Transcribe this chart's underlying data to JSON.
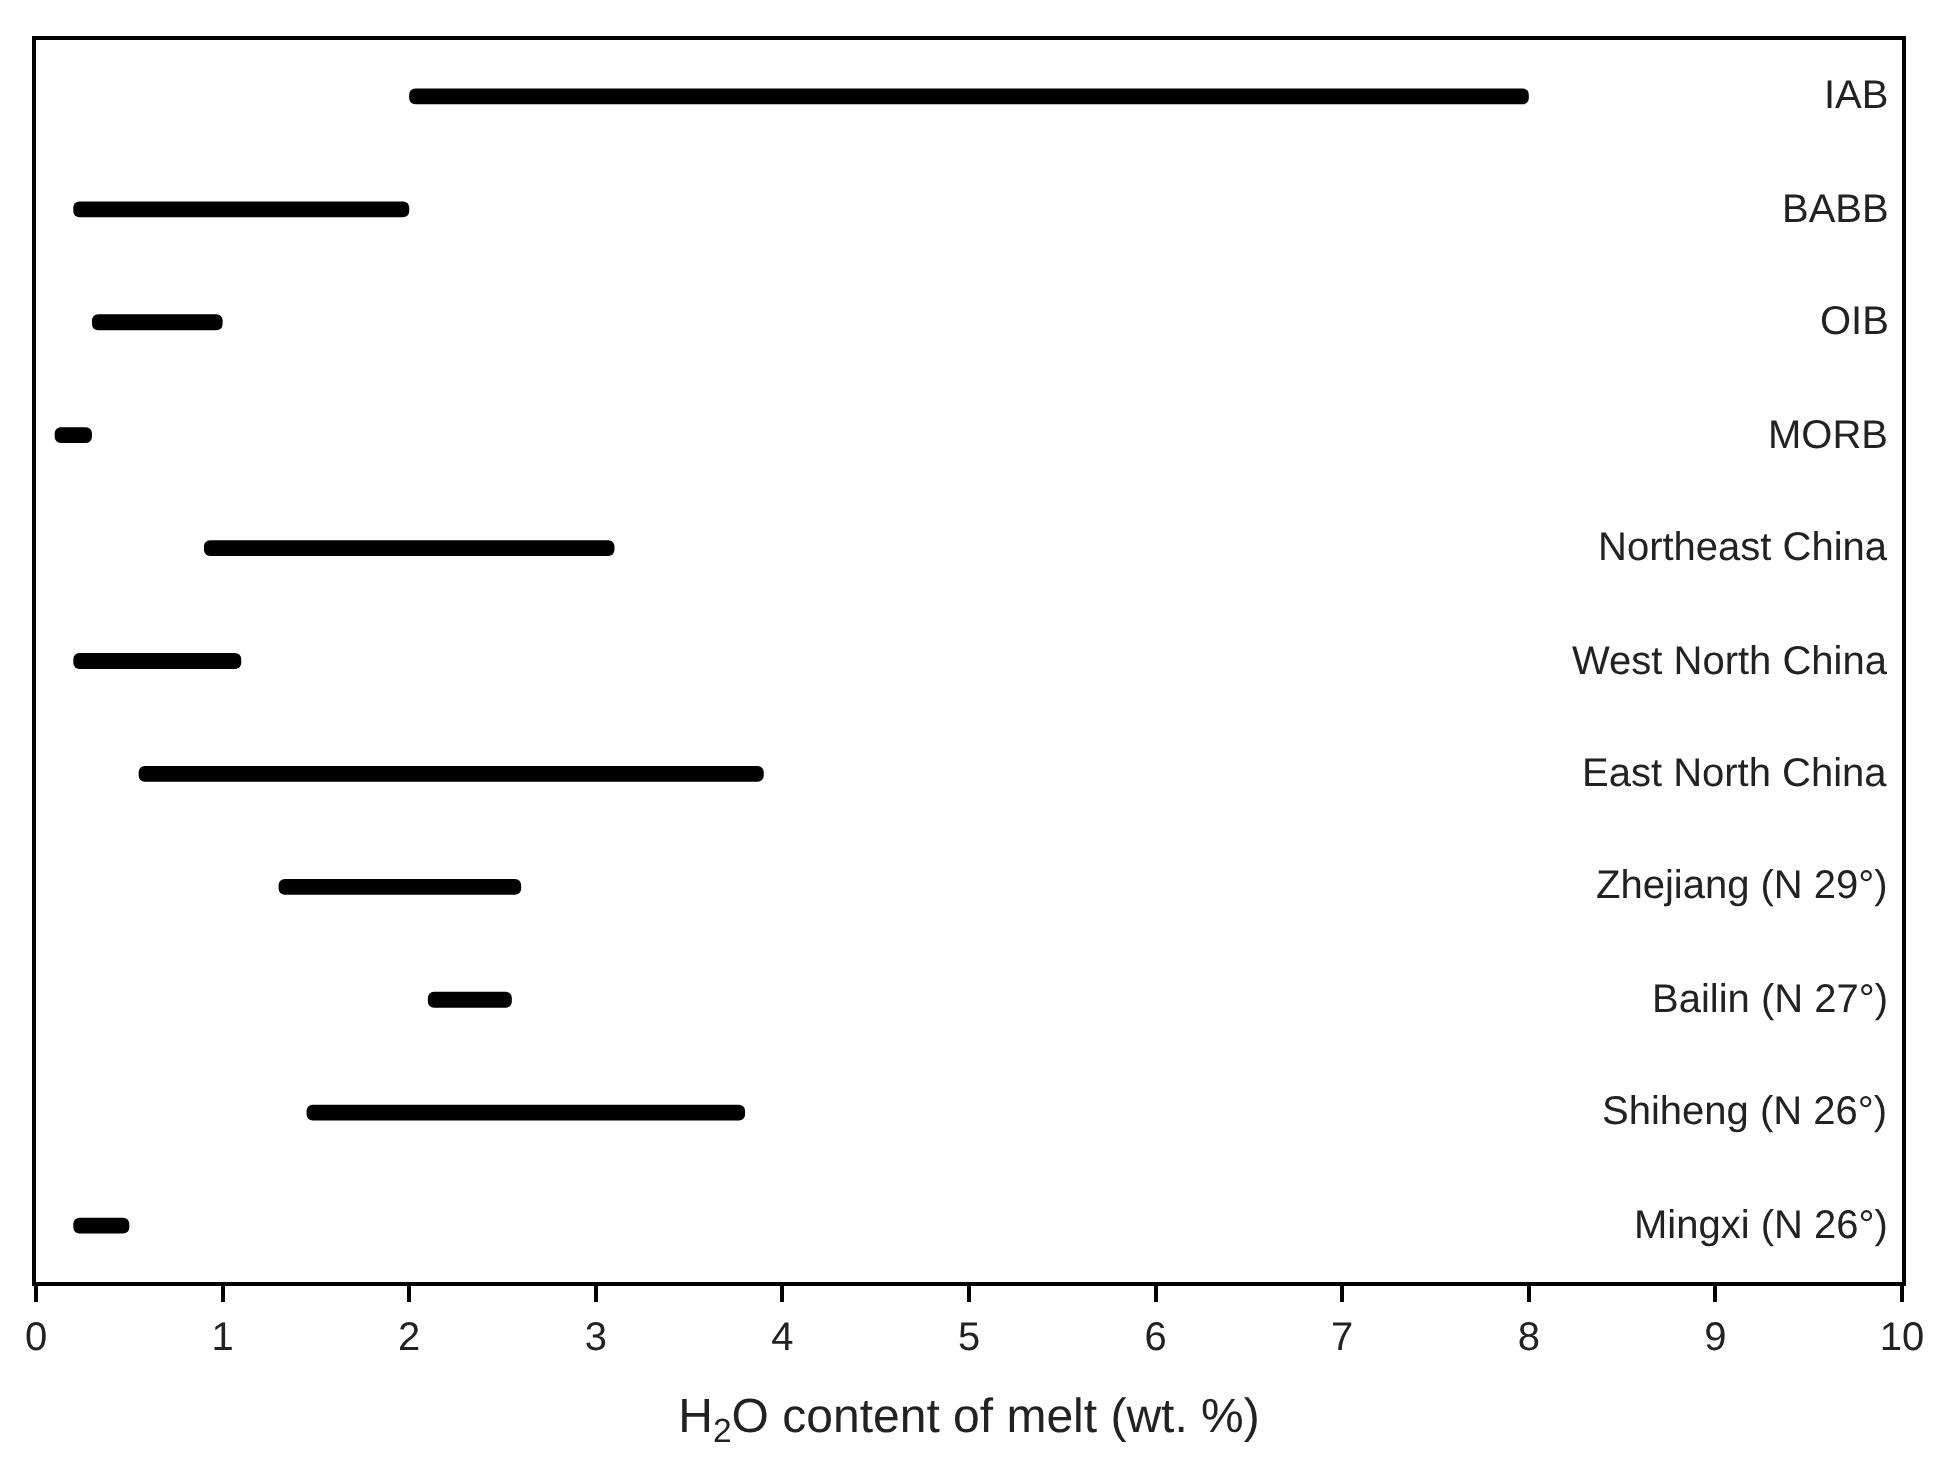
{
  "chart_data": {
    "type": "bar",
    "orientation": "horizontal",
    "categories": [
      "IAB",
      "BABB",
      "OIB",
      "MORB",
      "Northeast China",
      "West North China",
      "East North China",
      "Zhejiang (N 29°)",
      "Bailin (N 27°)",
      "Shiheng (N 26°)",
      "Mingxi (N 26°)"
    ],
    "base": [
      2.0,
      0.2,
      0.3,
      0.1,
      0.9,
      0.2,
      0.55,
      1.3,
      2.1,
      1.45,
      0.2
    ],
    "values": [
      6.0,
      1.8,
      0.7,
      0.2,
      2.2,
      0.9,
      3.35,
      1.3,
      0.45,
      2.35,
      0.3
    ],
    "color": "#000000",
    "xlim": [
      0,
      10
    ],
    "xticks": [
      0,
      1,
      2,
      3,
      4,
      5,
      6,
      7,
      8,
      9,
      10
    ],
    "xlabel": "H$_{2}$O content of melt (wt. %)"
  }
}
